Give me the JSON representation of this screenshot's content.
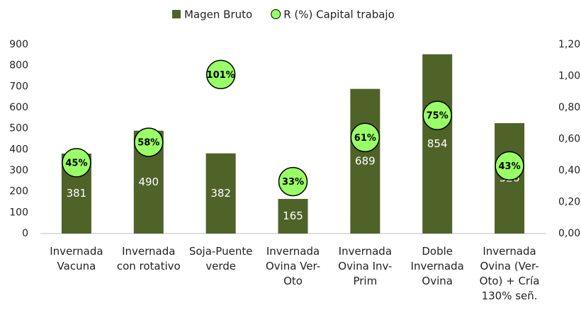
{
  "chart_data": {
    "type": "bar",
    "categories": [
      "Invernada Vacuna",
      "Invernada con rotativo",
      "Soja-Puente verde",
      "Invernada Ovina Ver-Oto",
      "Invernada Ovina Inv-Prim",
      "Doble Invernada Ovina",
      "Invernada Ovina (Ver-Oto) + Cría 130% señ."
    ],
    "series": [
      {
        "name": "Magen Bruto",
        "type": "bar",
        "color": "#4f6228",
        "values": [
          381,
          490,
          382,
          165,
          689,
          854,
          526
        ]
      },
      {
        "name": "R (%) Capital trabajo",
        "type": "scatter",
        "axis": "y2",
        "color": "#99ff66",
        "values": [
          0.45,
          0.58,
          1.01,
          0.33,
          0.61,
          0.75,
          0.43
        ],
        "value_labels": [
          "45%",
          "58%",
          "101%",
          "33%",
          "61%",
          "75%",
          "43%"
        ]
      }
    ],
    "ylim": [
      0,
      900
    ],
    "yticks": [
      0,
      100,
      200,
      300,
      400,
      500,
      600,
      700,
      800,
      900
    ],
    "y2lim": [
      0,
      1.2
    ],
    "y2ticks": [
      {
        "value": 0,
        "label": "0,00"
      },
      {
        "value": 0.2,
        "label": "0,20"
      },
      {
        "value": 0.4,
        "label": "0,40"
      },
      {
        "value": 0.6,
        "label": "0,60"
      },
      {
        "value": 0.8,
        "label": "0,80"
      },
      {
        "value": 1.0,
        "label": "1,00"
      },
      {
        "value": 1.2,
        "label": "1,20"
      }
    ],
    "legend": "top"
  }
}
